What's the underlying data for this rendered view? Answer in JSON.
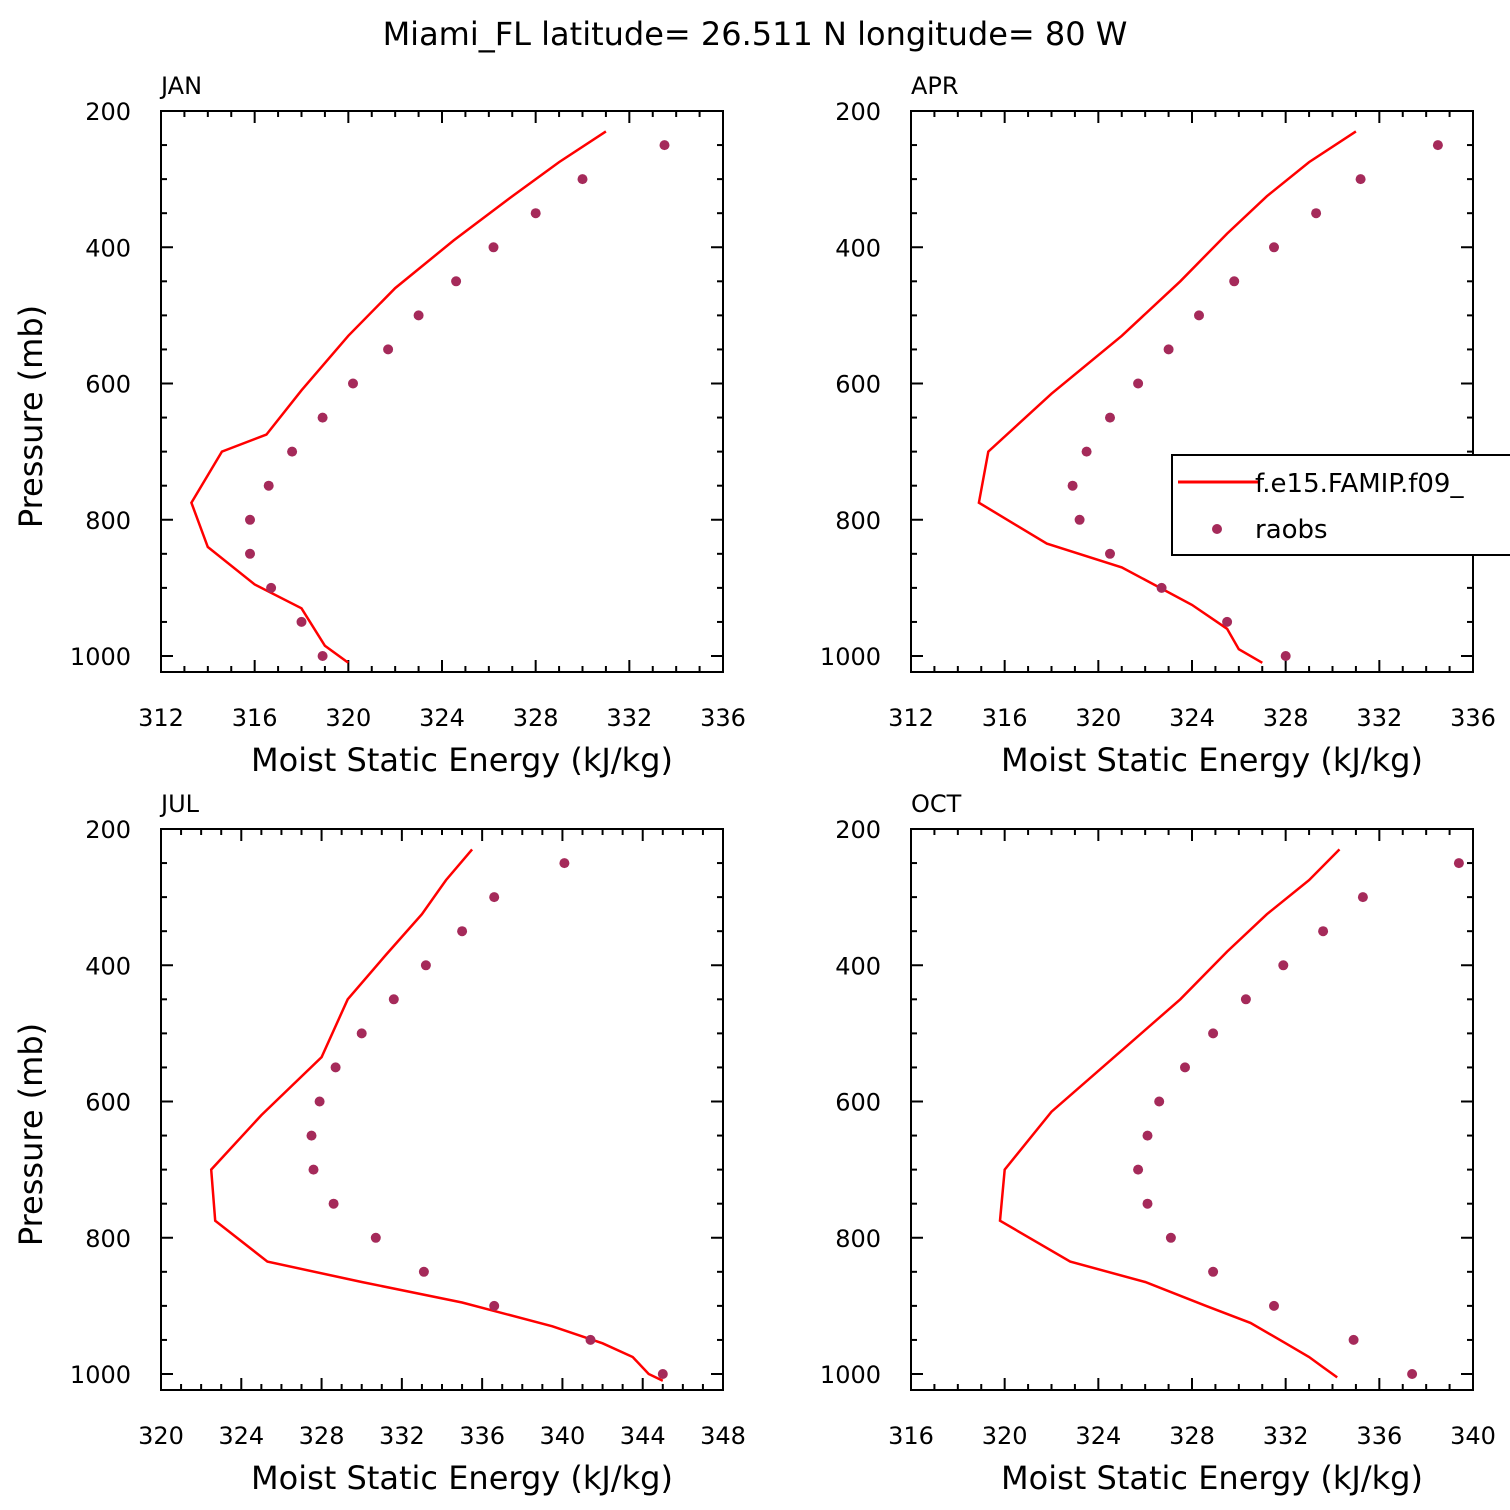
{
  "title": "Miami_FL  latitude= 26.511 N longitude= 80 W",
  "colors": {
    "model": "#ff0000",
    "obs": "#a52a5a",
    "axis": "#000000"
  },
  "legend": {
    "position": "panel APR, right",
    "entries": [
      {
        "label": "f.e15.FAMIP.f09_",
        "style": "line",
        "color": "#ff0000"
      },
      {
        "label": "raobs",
        "style": "marker",
        "color": "#a52a5a"
      }
    ]
  },
  "chart_data": [
    {
      "type": "line",
      "panel_label": "JAN",
      "xlabel": "Moist Static Energy (kJ/kg)",
      "ylabel": "Pressure (mb)",
      "xlim": [
        312,
        336
      ],
      "ylim": [
        1000,
        200
      ],
      "xticks": [
        312,
        316,
        320,
        324,
        328,
        332,
        336
      ],
      "yticks": [
        200,
        400,
        600,
        800,
        1000
      ],
      "series": [
        {
          "name": "f.e15.FAMIP.f09_",
          "style": "line",
          "points": [
            [
              331.0,
              230
            ],
            [
              329.0,
              275
            ],
            [
              327.0,
              325
            ],
            [
              324.5,
              390
            ],
            [
              322.0,
              460
            ],
            [
              320.0,
              530
            ],
            [
              318.0,
              610
            ],
            [
              316.5,
              675
            ],
            [
              314.6,
              700
            ],
            [
              313.3,
              775
            ],
            [
              314.0,
              840
            ],
            [
              316.0,
              895
            ],
            [
              318.0,
              930
            ],
            [
              319.0,
              985
            ],
            [
              320.0,
              1010
            ]
          ]
        },
        {
          "name": "raobs",
          "style": "marker",
          "points": [
            [
              333.5,
              250
            ],
            [
              330.0,
              300
            ],
            [
              328.0,
              350
            ],
            [
              326.2,
              400
            ],
            [
              324.6,
              450
            ],
            [
              323.0,
              500
            ],
            [
              321.7,
              550
            ],
            [
              320.2,
              600
            ],
            [
              318.9,
              650
            ],
            [
              317.6,
              700
            ],
            [
              316.6,
              750
            ],
            [
              315.8,
              800
            ],
            [
              315.8,
              850
            ],
            [
              316.7,
              900
            ],
            [
              318.0,
              950
            ],
            [
              318.9,
              1000
            ]
          ]
        }
      ]
    },
    {
      "type": "line",
      "panel_label": "APR",
      "xlabel": "Moist Static Energy (kJ/kg)",
      "ylabel": "",
      "xlim": [
        312,
        336
      ],
      "ylim": [
        1000,
        200
      ],
      "xticks": [
        312,
        316,
        320,
        324,
        328,
        332,
        336
      ],
      "yticks": [
        200,
        400,
        600,
        800,
        1000
      ],
      "series": [
        {
          "name": "f.e15.FAMIP.f09_",
          "style": "line",
          "points": [
            [
              331.0,
              230
            ],
            [
              329.0,
              275
            ],
            [
              327.2,
              325
            ],
            [
              325.5,
              380
            ],
            [
              323.5,
              450
            ],
            [
              321.0,
              530
            ],
            [
              318.0,
              615
            ],
            [
              315.3,
              700
            ],
            [
              314.9,
              775
            ],
            [
              317.8,
              835
            ],
            [
              321.0,
              870
            ],
            [
              324.0,
              925
            ],
            [
              325.5,
              960
            ],
            [
              326.0,
              990
            ],
            [
              327.0,
              1010
            ]
          ]
        },
        {
          "name": "raobs",
          "style": "marker",
          "points": [
            [
              334.5,
              250
            ],
            [
              331.2,
              300
            ],
            [
              329.3,
              350
            ],
            [
              327.5,
              400
            ],
            [
              325.8,
              450
            ],
            [
              324.3,
              500
            ],
            [
              323.0,
              550
            ],
            [
              321.7,
              600
            ],
            [
              320.5,
              650
            ],
            [
              319.5,
              700
            ],
            [
              318.9,
              750
            ],
            [
              319.2,
              800
            ],
            [
              320.5,
              850
            ],
            [
              322.7,
              900
            ],
            [
              325.5,
              950
            ],
            [
              328.0,
              1000
            ]
          ]
        }
      ]
    },
    {
      "type": "line",
      "panel_label": "JUL",
      "xlabel": "Moist Static Energy (kJ/kg)",
      "ylabel": "Pressure (mb)",
      "xlim": [
        320,
        348
      ],
      "ylim": [
        1000,
        200
      ],
      "xticks": [
        320,
        324,
        328,
        332,
        336,
        340,
        344,
        348
      ],
      "yticks": [
        200,
        400,
        600,
        800,
        1000
      ],
      "series": [
        {
          "name": "f.e15.FAMIP.f09_",
          "style": "line",
          "points": [
            [
              335.5,
              230
            ],
            [
              334.2,
              275
            ],
            [
              333.0,
              325
            ],
            [
              331.2,
              385
            ],
            [
              329.3,
              450
            ],
            [
              328.0,
              535
            ],
            [
              325.0,
              620
            ],
            [
              322.5,
              700
            ],
            [
              322.7,
              775
            ],
            [
              325.3,
              835
            ],
            [
              330.0,
              865
            ],
            [
              335.0,
              895
            ],
            [
              339.5,
              930
            ],
            [
              342.0,
              955
            ],
            [
              343.5,
              975
            ],
            [
              344.3,
              1000
            ],
            [
              345.0,
              1010
            ]
          ]
        },
        {
          "name": "raobs",
          "style": "marker",
          "points": [
            [
              340.1,
              250
            ],
            [
              336.6,
              300
            ],
            [
              335.0,
              350
            ],
            [
              333.2,
              400
            ],
            [
              331.6,
              450
            ],
            [
              330.0,
              500
            ],
            [
              328.7,
              550
            ],
            [
              327.9,
              600
            ],
            [
              327.5,
              650
            ],
            [
              327.6,
              700
            ],
            [
              328.6,
              750
            ],
            [
              330.7,
              800
            ],
            [
              333.1,
              850
            ],
            [
              336.6,
              900
            ],
            [
              341.4,
              950
            ],
            [
              345.0,
              1000
            ]
          ]
        }
      ]
    },
    {
      "type": "line",
      "panel_label": "OCT",
      "xlabel": "Moist Static Energy (kJ/kg)",
      "ylabel": "",
      "xlim": [
        316,
        340
      ],
      "ylim": [
        1000,
        200
      ],
      "xticks": [
        316,
        320,
        324,
        328,
        332,
        336,
        340
      ],
      "yticks": [
        200,
        400,
        600,
        800,
        1000
      ],
      "series": [
        {
          "name": "f.e15.FAMIP.f09_",
          "style": "line",
          "points": [
            [
              334.3,
              230
            ],
            [
              333.0,
              275
            ],
            [
              331.2,
              325
            ],
            [
              329.5,
              380
            ],
            [
              327.5,
              450
            ],
            [
              325.0,
              525
            ],
            [
              322.0,
              615
            ],
            [
              320.0,
              700
            ],
            [
              319.8,
              775
            ],
            [
              322.8,
              835
            ],
            [
              326.0,
              865
            ],
            [
              328.6,
              900
            ],
            [
              330.5,
              925
            ],
            [
              332.0,
              955
            ],
            [
              333.0,
              975
            ],
            [
              333.6,
              990
            ],
            [
              334.2,
              1005
            ]
          ]
        },
        {
          "name": "raobs",
          "style": "marker",
          "points": [
            [
              339.4,
              250
            ],
            [
              335.3,
              300
            ],
            [
              333.6,
              350
            ],
            [
              331.9,
              400
            ],
            [
              330.3,
              450
            ],
            [
              328.9,
              500
            ],
            [
              327.7,
              550
            ],
            [
              326.6,
              600
            ],
            [
              326.1,
              650
            ],
            [
              325.7,
              700
            ],
            [
              326.1,
              750
            ],
            [
              327.1,
              800
            ],
            [
              328.9,
              850
            ],
            [
              331.5,
              900
            ],
            [
              334.9,
              950
            ],
            [
              337.4,
              1000
            ]
          ]
        }
      ]
    }
  ]
}
